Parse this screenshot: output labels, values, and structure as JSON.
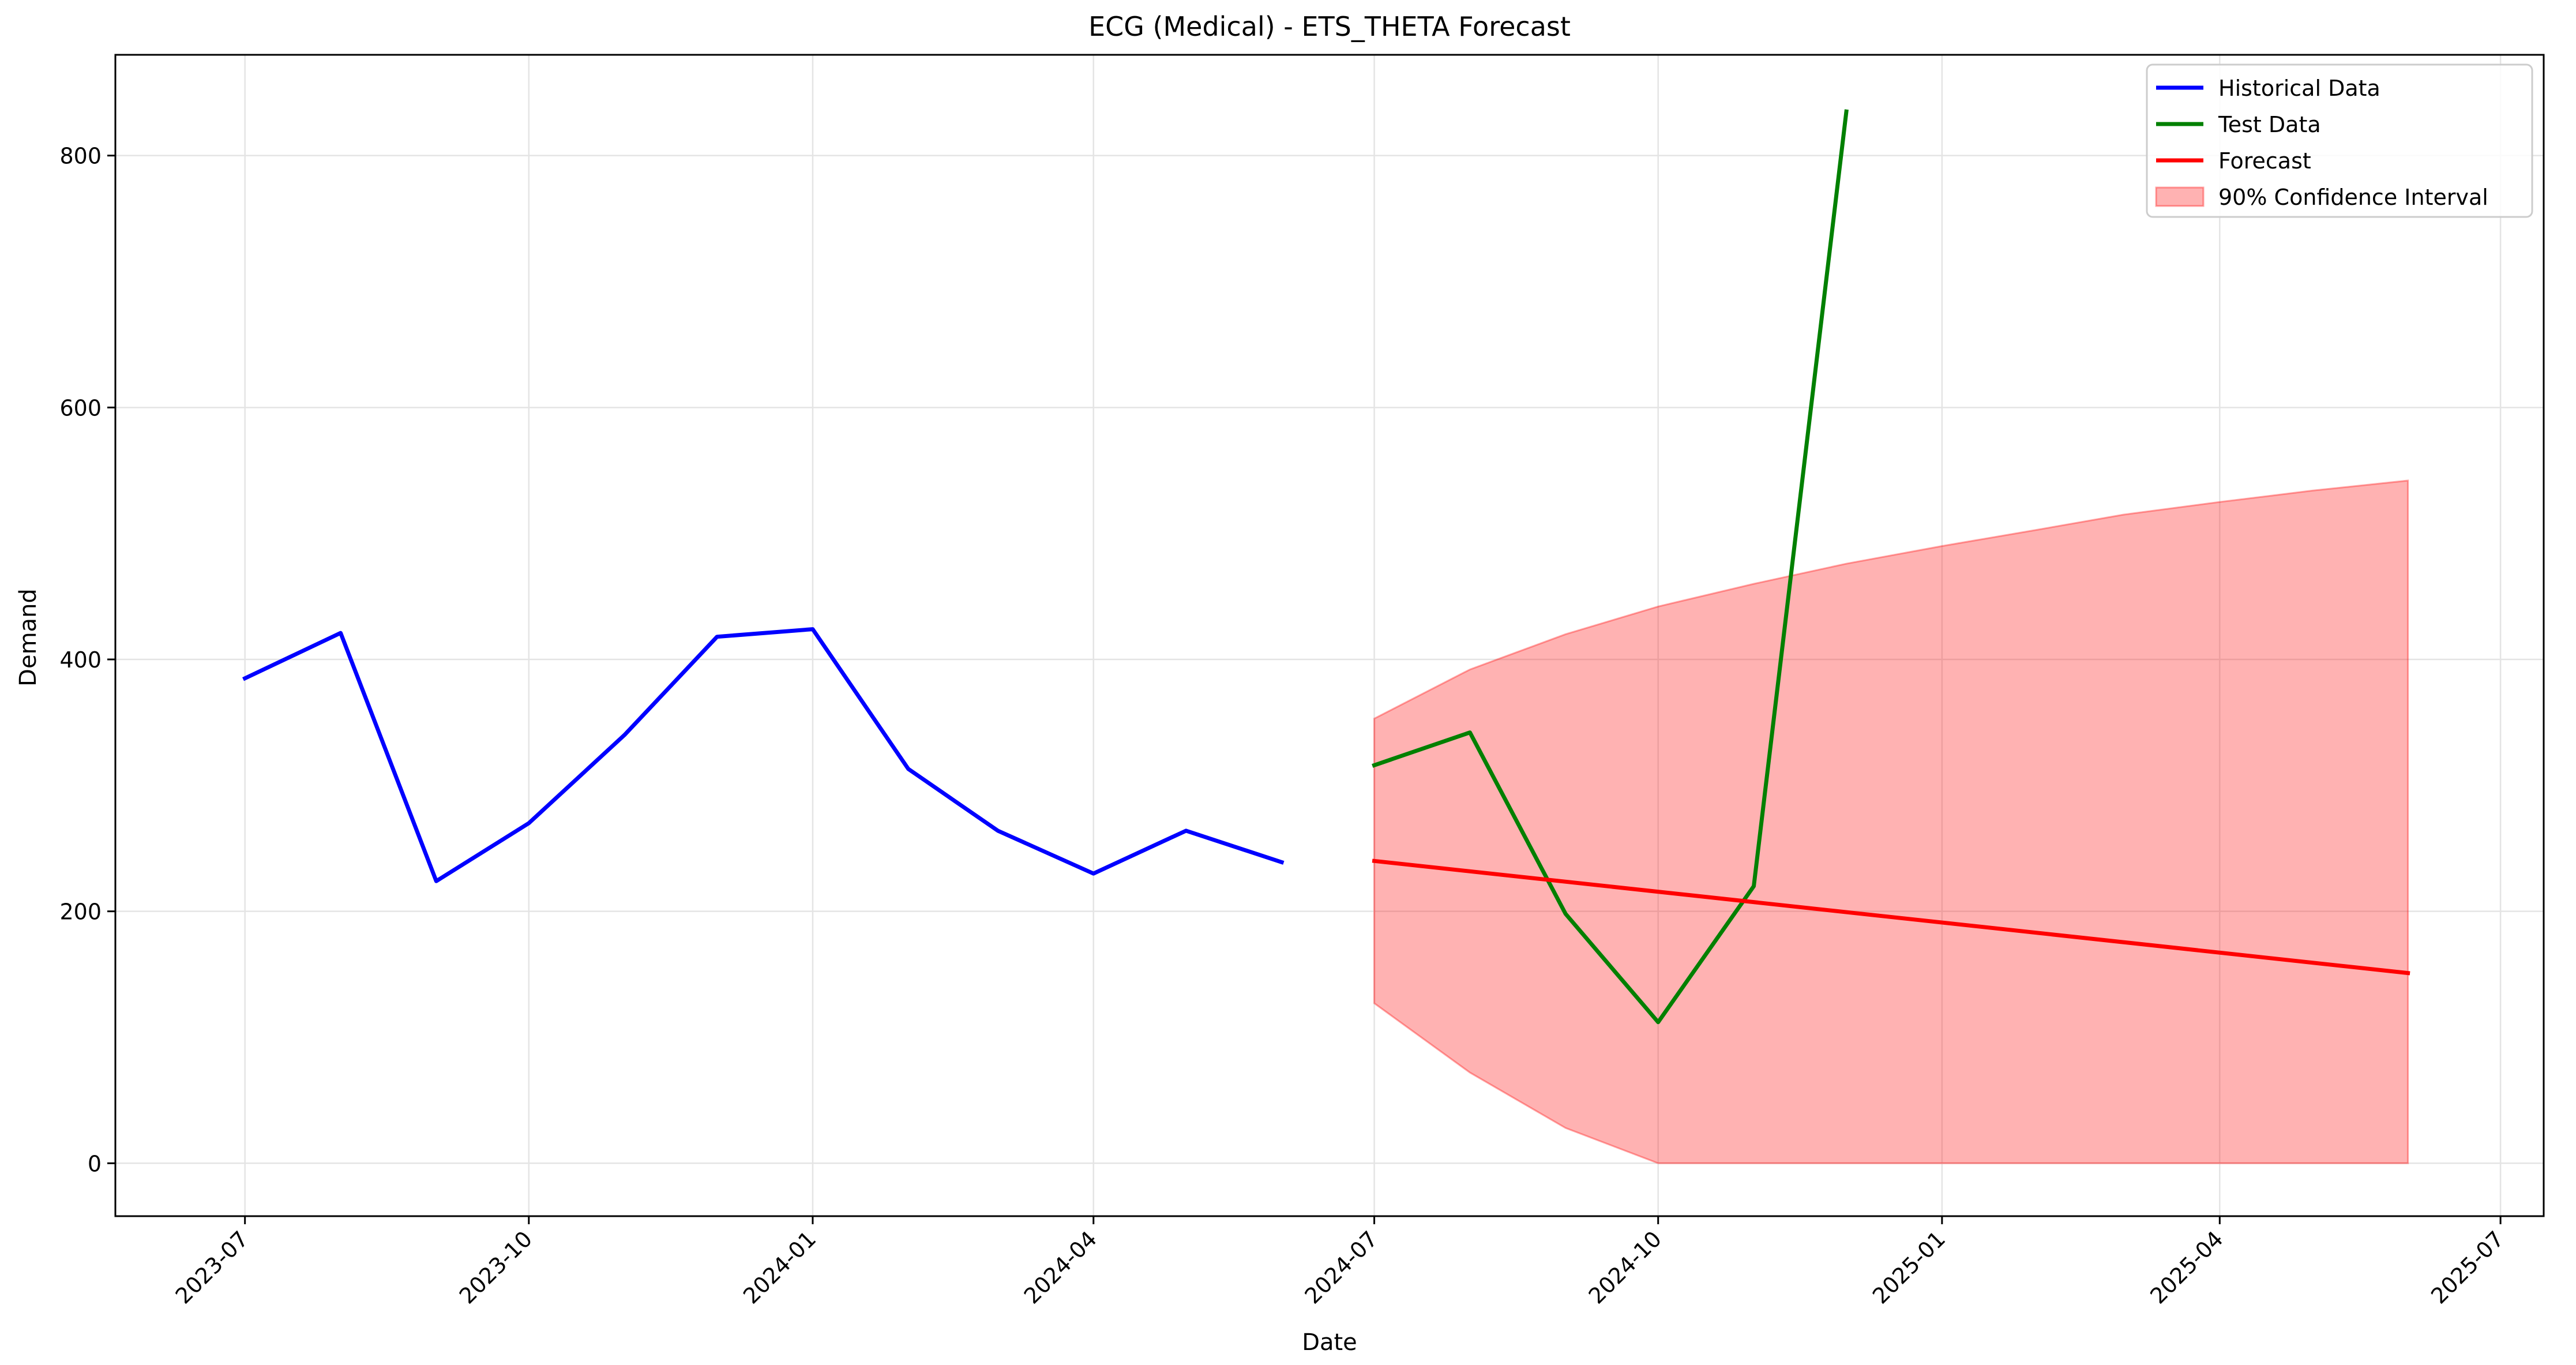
{
  "chart_data": {
    "type": "line",
    "title": "ECG (Medical) - ETS_THETA Forecast",
    "xlabel": "Date",
    "ylabel": "Demand",
    "x_ticks": [
      "2023-07",
      "2023-10",
      "2024-01",
      "2024-04",
      "2024-07",
      "2024-10",
      "2025-01",
      "2025-04",
      "2025-07"
    ],
    "y_ticks": [
      0,
      200,
      400,
      600,
      800
    ],
    "xlim": [
      "2023-05-20",
      "2025-07-15"
    ],
    "ylim": [
      -42,
      880
    ],
    "grid": true,
    "legend_position": "top-right",
    "series": [
      {
        "name": "Historical Data",
        "color": "#0000ff",
        "kind": "line",
        "x": [
          "2023-07-01",
          "2023-08-01",
          "2023-09-01",
          "2023-10-01",
          "2023-11-01",
          "2023-12-01",
          "2024-01-01",
          "2024-02-01",
          "2024-03-01",
          "2024-04-01",
          "2024-05-01",
          "2024-06-01"
        ],
        "y": [
          385,
          421,
          224,
          270,
          340,
          418,
          424,
          313,
          264,
          230,
          264,
          239
        ]
      },
      {
        "name": "Test Data",
        "color": "#008000",
        "kind": "line",
        "x": [
          "2024-07-01",
          "2024-08-01",
          "2024-09-01",
          "2024-10-01",
          "2024-11-01",
          "2024-12-01"
        ],
        "y": [
          316,
          342,
          198,
          112,
          220,
          835
        ]
      },
      {
        "name": "Forecast",
        "color": "#ff0000",
        "kind": "line",
        "x": [
          "2024-07-01",
          "2025-06-01"
        ],
        "y": [
          240,
          151
        ]
      },
      {
        "name": "90% Confidence Interval",
        "color": "#ff0000",
        "kind": "band",
        "x": [
          "2024-07-01",
          "2024-08-01",
          "2024-09-01",
          "2024-10-01",
          "2024-11-01",
          "2024-12-01",
          "2025-01-01",
          "2025-02-01",
          "2025-03-01",
          "2025-04-01",
          "2025-05-01",
          "2025-06-01"
        ],
        "upper": [
          353,
          392,
          420,
          442,
          460,
          476,
          490,
          503,
          515,
          525,
          534,
          542
        ],
        "lower": [
          127,
          72,
          28,
          0,
          0,
          0,
          0,
          0,
          0,
          0,
          0,
          0
        ]
      }
    ]
  }
}
